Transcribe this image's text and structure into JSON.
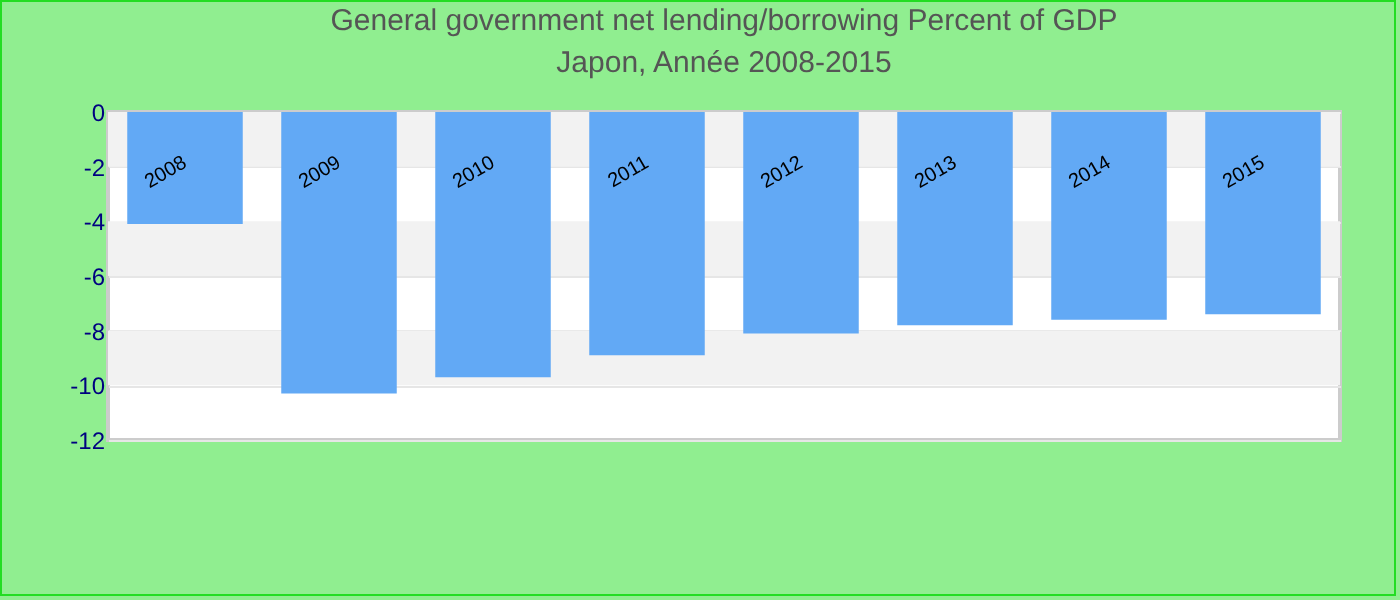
{
  "chart_data": {
    "type": "bar",
    "title": "General government net lending/borrowing  Percent of GDP",
    "subtitle": "Japon, Année 2008-2015",
    "categories": [
      "2008",
      "2009",
      "2010",
      "2011",
      "2012",
      "2013",
      "2014",
      "2015"
    ],
    "values": [
      -4.1,
      -10.3,
      -9.7,
      -8.9,
      -8.1,
      -7.8,
      -7.6,
      -7.4
    ],
    "color": "#62a9f5",
    "ylim": [
      -12,
      0
    ],
    "yticks": [
      -12,
      -10,
      -8,
      -6,
      -4,
      -2,
      0
    ],
    "grid": "y"
  }
}
